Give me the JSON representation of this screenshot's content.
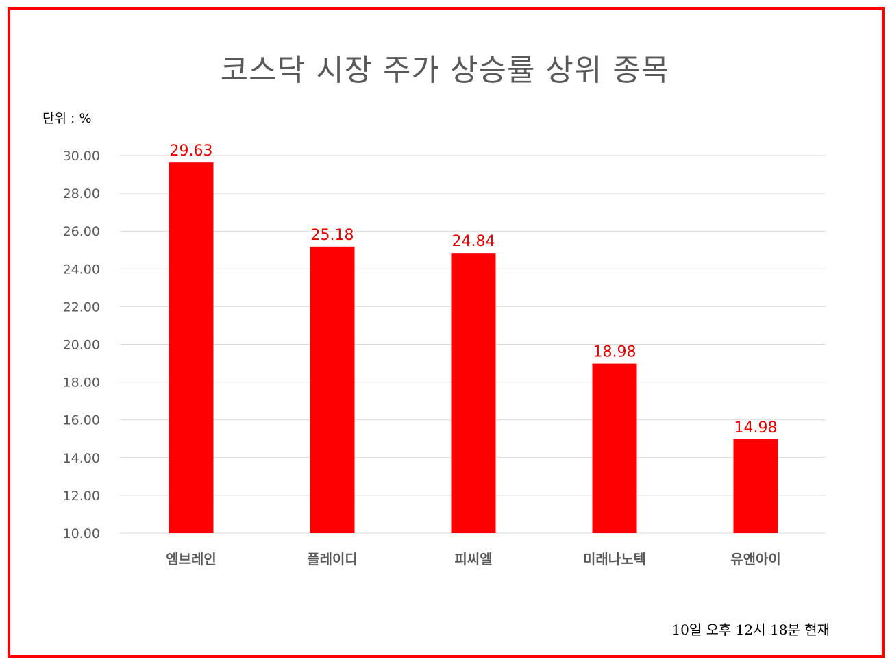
{
  "chart_data": {
    "type": "bar",
    "title": "코스닥 시장 주가 상승률 상위 종목",
    "unit_label": "단위 : %",
    "footnote": "10일  오후 12시 18분 현재",
    "categories": [
      "엠브레인",
      "플레이디",
      "피씨엘",
      "미래나노텍",
      "유앤아이"
    ],
    "values": [
      29.63,
      25.18,
      24.84,
      18.98,
      14.98
    ],
    "value_labels": [
      "29.63",
      "25.18",
      "24.84",
      "18.98",
      "14.98"
    ],
    "ylim": [
      10,
      30
    ],
    "yticks": [
      "10.00",
      "12.00",
      "14.00",
      "16.00",
      "18.00",
      "20.00",
      "22.00",
      "24.00",
      "26.00",
      "28.00",
      "30.00"
    ],
    "ytick_values": [
      10,
      12,
      14,
      16,
      18,
      20,
      22,
      24,
      26,
      28,
      30
    ],
    "grid": true,
    "legend": "none",
    "colors": {
      "bar": "#ff0000",
      "data_label": "#e00000",
      "frame": "#ff0000",
      "gridline": "#d9d9d9"
    }
  }
}
